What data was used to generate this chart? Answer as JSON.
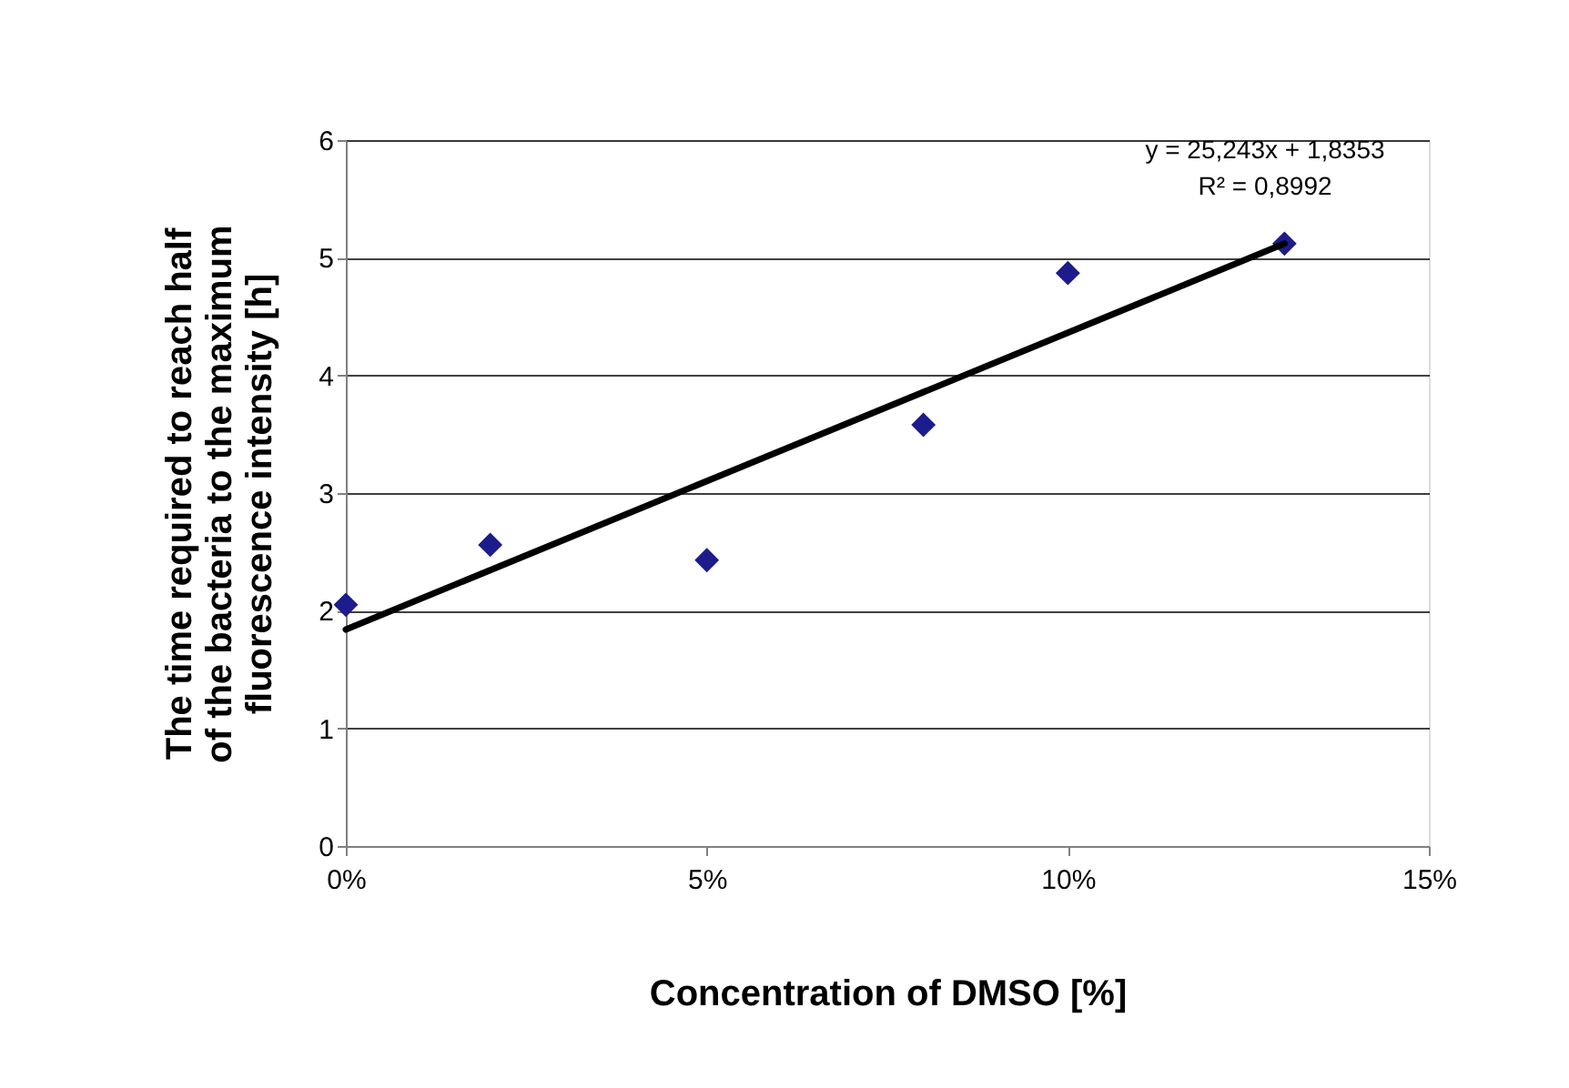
{
  "chart_data": {
    "type": "scatter",
    "xlabel": "Concentration of DMSO [%]",
    "ylabel": "The time required to reach half\nof the bacteria to the maximum\nfluorescence intensity [h]",
    "series": [
      {
        "color": "#1c1c8c",
        "marker": "diamond",
        "x": [
          0,
          2,
          5,
          8,
          10,
          13
        ],
        "values": [
          2.05,
          2.56,
          2.43,
          3.58,
          4.87,
          5.12
        ]
      },
      {
        "type": "line",
        "color": "#000000",
        "line_style": "solid",
        "x": [
          0,
          13
        ],
        "values": [
          1.84,
          5.12
        ]
      }
    ],
    "annotations": [
      "y = 25,243x + 1,8353",
      "R² = 0,8992"
    ],
    "xlim": [
      0,
      15
    ],
    "xticks": [
      {
        "value": 0,
        "label": "0%"
      },
      {
        "value": 5,
        "label": "5%"
      },
      {
        "value": 10,
        "label": "10%"
      },
      {
        "value": 15,
        "label": "15%"
      }
    ],
    "ylim": [
      0,
      6
    ],
    "yticks": [
      0,
      1,
      2,
      3,
      4,
      5,
      6
    ],
    "grid": "y"
  }
}
